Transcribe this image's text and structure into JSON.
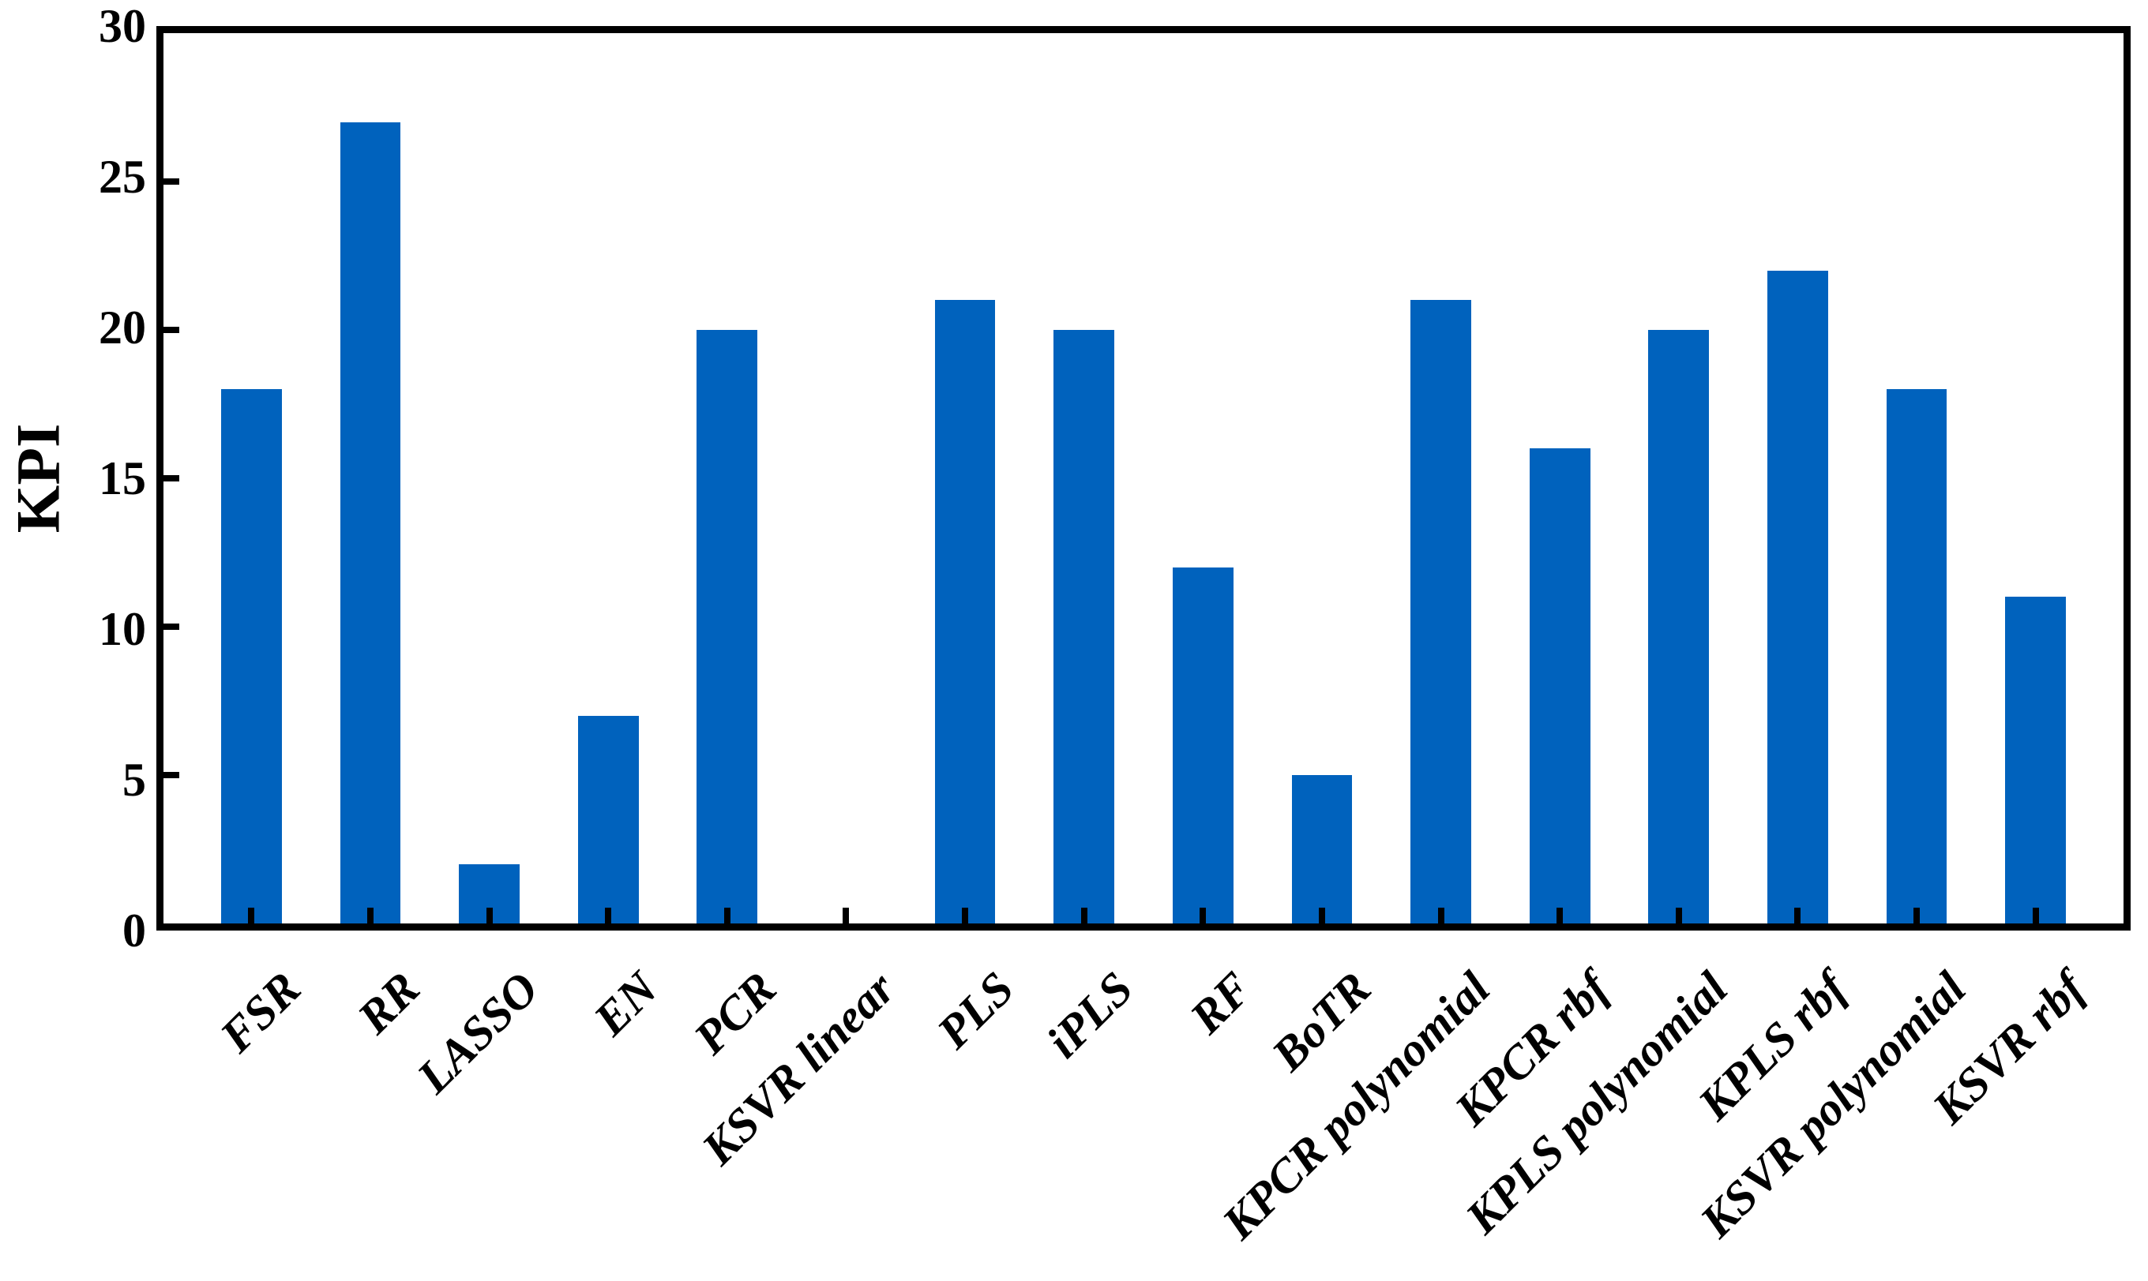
{
  "chart_data": {
    "type": "bar",
    "title": "",
    "xlabel": "",
    "ylabel": "KPI",
    "categories": [
      "FSR",
      "RR",
      "LASSO",
      "EN",
      "PCR",
      "KSVR linear",
      "PLS",
      "iPLS",
      "RF",
      "BoTR",
      "KPCR polynomial",
      "KPCR rbf",
      "KPLS polynomial",
      "KPLS rbf",
      "KSVR polynomial",
      "KSVR rbf"
    ],
    "values": [
      18,
      27,
      2,
      7,
      20,
      0,
      21,
      20,
      12,
      5,
      21,
      16,
      20,
      22,
      18,
      11
    ],
    "ylim": [
      0,
      30
    ],
    "yticks": [
      0,
      5,
      10,
      15,
      20,
      25,
      30
    ],
    "grid": "off",
    "legend": "none",
    "box": "on",
    "tick_direction": "in",
    "bar_color": "#0062BD",
    "axis_color": "#000000",
    "background_color": "#FFFFFF",
    "x_label_rotation_deg": 45
  }
}
